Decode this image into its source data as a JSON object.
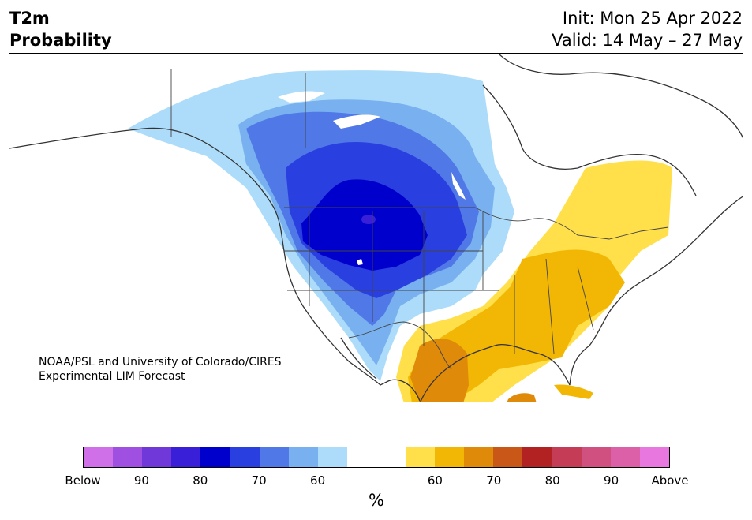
{
  "header": {
    "variable": "T2m",
    "product": "Probability",
    "init": "Init: Mon 25 Apr 2022",
    "valid": "Valid: 14 May – 27 May"
  },
  "map": {
    "region": "North America",
    "credit_line1": "NOAA/PSL and University of Colorado/CIRES",
    "credit_line2": "Experimental LIM Forecast",
    "below_colors": [
      "#d070e8",
      "#a050e0",
      "#7038d8",
      "#3a1fd8",
      "#0000cc",
      "#2a3fe0",
      "#5078e6",
      "#78b0f0",
      "#acdcfa"
    ],
    "neutral_color": "#ffffff",
    "above_colors": [
      "#ffe04a",
      "#f2b705",
      "#e08a0a",
      "#c85718",
      "#b22222",
      "#c43c55",
      "#d05080",
      "#dc60a8",
      "#e878e0"
    ]
  },
  "colorbar": {
    "colors": [
      "#d070e8",
      "#a050e0",
      "#7038d8",
      "#3a1fd8",
      "#0000cc",
      "#2a3fe0",
      "#5078e6",
      "#78b0f0",
      "#acdcfa",
      "#ffffff",
      "#ffffff",
      "#ffe04a",
      "#f2b705",
      "#e08a0a",
      "#c85718",
      "#b22222",
      "#c43c55",
      "#d05080",
      "#dc60a8",
      "#e878e0"
    ],
    "tick_labels": [
      "Below",
      "90",
      "80",
      "70",
      "60",
      "60",
      "70",
      "80",
      "90",
      "Above"
    ],
    "unit": "%"
  }
}
